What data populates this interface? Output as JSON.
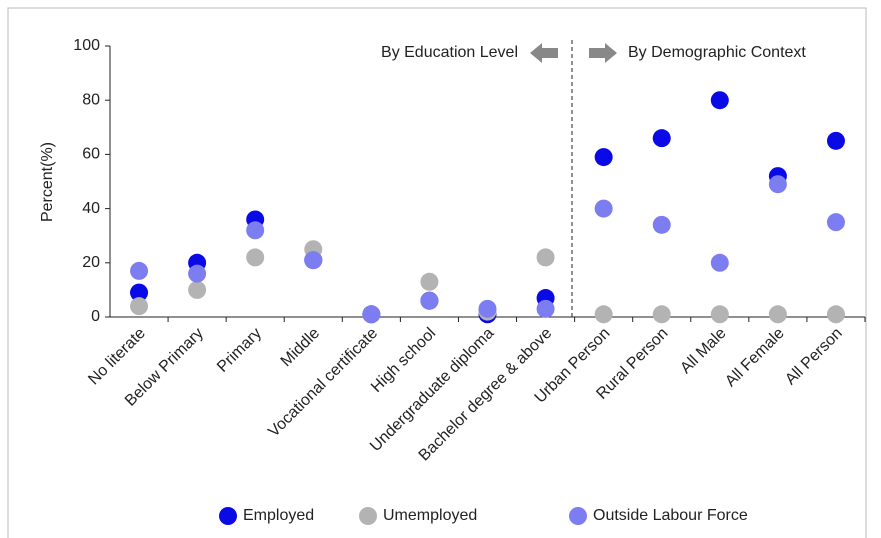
{
  "chart_data": {
    "type": "scatter",
    "ylabel": "Percent(%)",
    "annotations": [
      "By Education Level",
      "By Demographic Context"
    ],
    "categories": [
      "No literate",
      "Below Primary",
      "Primary",
      "Middle",
      "Vocational certificate",
      "High school",
      "Undergraduate diploma",
      "Bachelor degree & above",
      "Urban Person",
      "Rural Person",
      "All Male",
      "All Female",
      "All Person"
    ],
    "series": [
      {
        "name": "Employed",
        "color": "#0a0ae6",
        "values": [
          9,
          20,
          36,
          21,
          1,
          6,
          1,
          7,
          59,
          66,
          80,
          52,
          65
        ]
      },
      {
        "name": "Umemployed",
        "color": "#b3b3b3",
        "values": [
          4,
          10,
          22,
          25,
          1,
          13,
          2,
          22,
          1,
          1,
          1,
          1,
          1
        ]
      },
      {
        "name": "Outside Labour Force",
        "color": "#7d7df2",
        "values": [
          17,
          16,
          32,
          21,
          1,
          6,
          3,
          3,
          40,
          34,
          20,
          49,
          35
        ]
      }
    ],
    "ylim": [
      0,
      100
    ],
    "yticks": [
      0,
      20,
      40,
      60,
      80,
      100
    ],
    "grid": false
  }
}
